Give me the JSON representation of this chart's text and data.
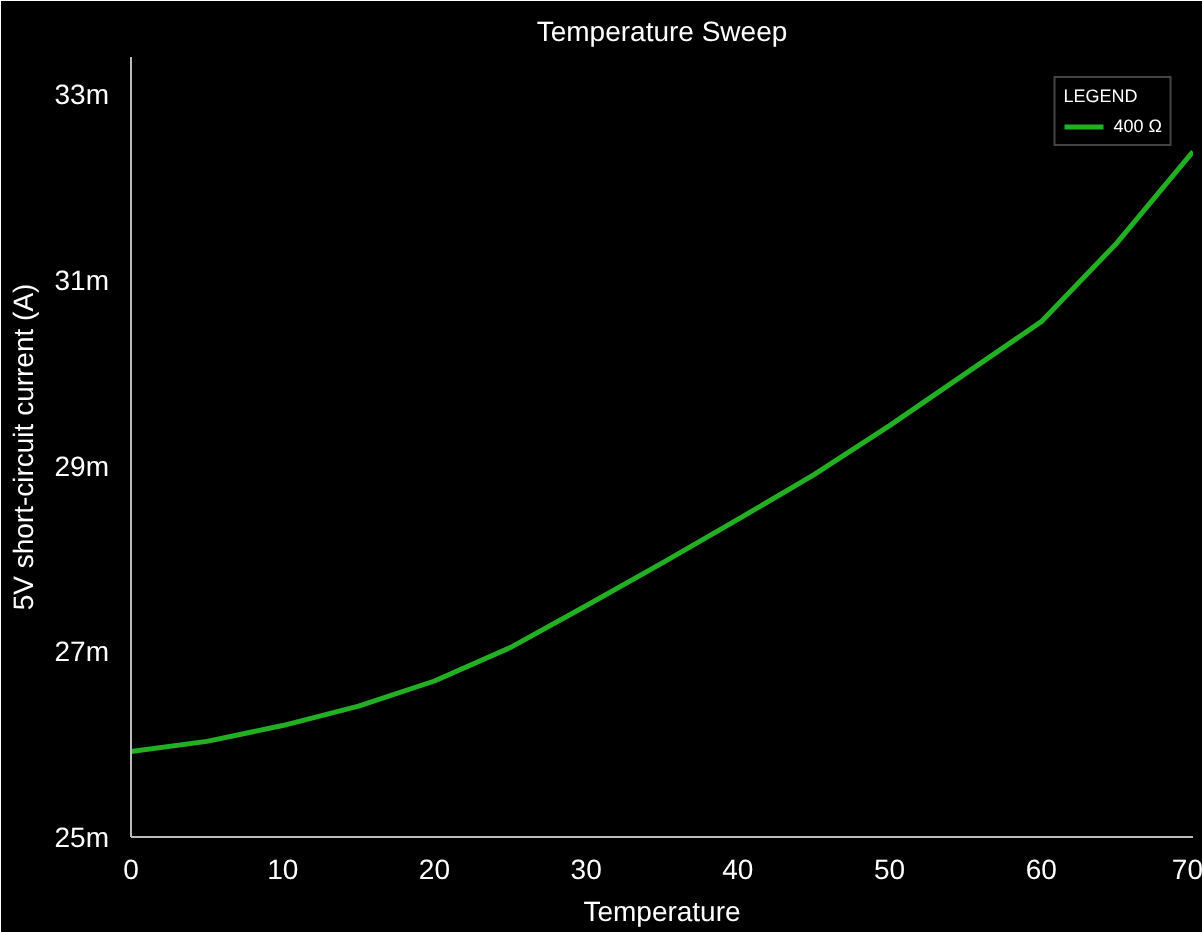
{
  "chart_data": {
    "type": "line",
    "title": "Temperature Sweep",
    "xlabel": "Temperature",
    "ylabel": "5V short-circuit current (A)",
    "legend_title": "LEGEND",
    "x": [
      0,
      5,
      10,
      15,
      20,
      25,
      30,
      35,
      40,
      45,
      50,
      55,
      60,
      65,
      70
    ],
    "series": [
      {
        "name": "400 Ω",
        "color": "#22b022",
        "values": [
          25.92,
          26.03,
          26.2,
          26.41,
          26.68,
          27.04,
          27.49,
          27.95,
          28.42,
          28.9,
          29.43,
          29.99,
          30.55,
          31.4,
          32.38
        ]
      }
    ],
    "xlim": [
      0,
      70
    ],
    "xticks": [
      0,
      10,
      20,
      30,
      40,
      50,
      60,
      70
    ],
    "ylim": [
      25,
      33.4
    ],
    "yticks": [
      {
        "value": 25,
        "label": "25m"
      },
      {
        "value": 27,
        "label": "27m"
      },
      {
        "value": 29,
        "label": "29m"
      },
      {
        "value": 31,
        "label": "31m"
      },
      {
        "value": 33,
        "label": "33m"
      }
    ],
    "grid": false,
    "legend": "top right",
    "marker": "none",
    "line_style": "solid"
  }
}
